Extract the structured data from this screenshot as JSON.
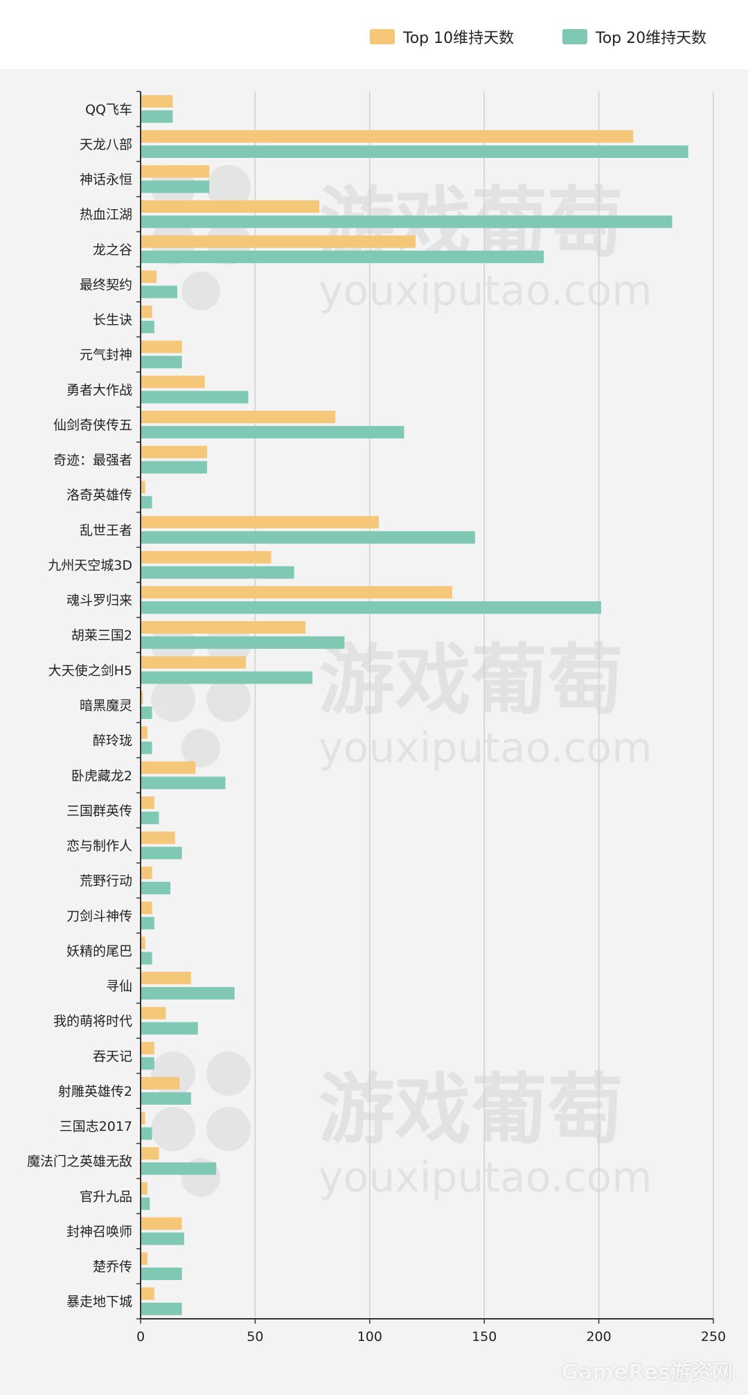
{
  "chart_data": {
    "type": "bar",
    "orientation": "horizontal",
    "categories": [
      "QQ飞车",
      "天龙八部",
      "神话永恒",
      "热血江湖",
      "龙之谷",
      "最终契约",
      "长生诀",
      "元气封神",
      "勇者大作战",
      "仙剑奇侠传五",
      "奇迹：最强者",
      "洛奇英雄传",
      "乱世王者",
      "九州天空城3D",
      "魂斗罗归来",
      "胡莱三国2",
      "大天使之剑H5",
      "暗黑魔灵",
      "醉玲珑",
      "卧虎藏龙2",
      "三国群英传",
      "恋与制作人",
      "荒野行动",
      "刀剑斗神传",
      "妖精的尾巴",
      "寻仙",
      "我的萌将时代",
      "吞天记",
      "射雕英雄传2",
      "三国志2017",
      "魔法门之英雄无敌",
      "官升九品",
      "封神召唤师",
      "楚乔传",
      "暴走地下城"
    ],
    "series": [
      {
        "name": "Top 10维持天数",
        "color": "#f5c778",
        "values": [
          14,
          215,
          30,
          78,
          120,
          7,
          5,
          18,
          28,
          85,
          29,
          2,
          104,
          57,
          136,
          72,
          46,
          1,
          3,
          24,
          6,
          15,
          5,
          5,
          2,
          22,
          11,
          6,
          17,
          2,
          8,
          3,
          18,
          3,
          6
        ]
      },
      {
        "name": "Top 20维持天数",
        "color": "#7fc8b3",
        "values": [
          14,
          239,
          30,
          232,
          176,
          16,
          6,
          18,
          47,
          115,
          29,
          5,
          146,
          67,
          201,
          89,
          75,
          5,
          5,
          37,
          8,
          18,
          13,
          6,
          5,
          41,
          25,
          6,
          22,
          5,
          33,
          4,
          19,
          18,
          18
        ]
      }
    ],
    "xlim": [
      0,
      250
    ],
    "xticks": [
      0,
      50,
      100,
      150,
      200,
      250
    ],
    "xlabel": "",
    "ylabel": "",
    "title": "",
    "grid": "vertical",
    "legend_position": "top-right"
  },
  "watermark": {
    "cn": "游戏葡萄",
    "en": "youxiputao.com",
    "footer": "GameRes游资网"
  },
  "colors": {
    "axis": "#333333",
    "grid": "#cfcfcf"
  }
}
